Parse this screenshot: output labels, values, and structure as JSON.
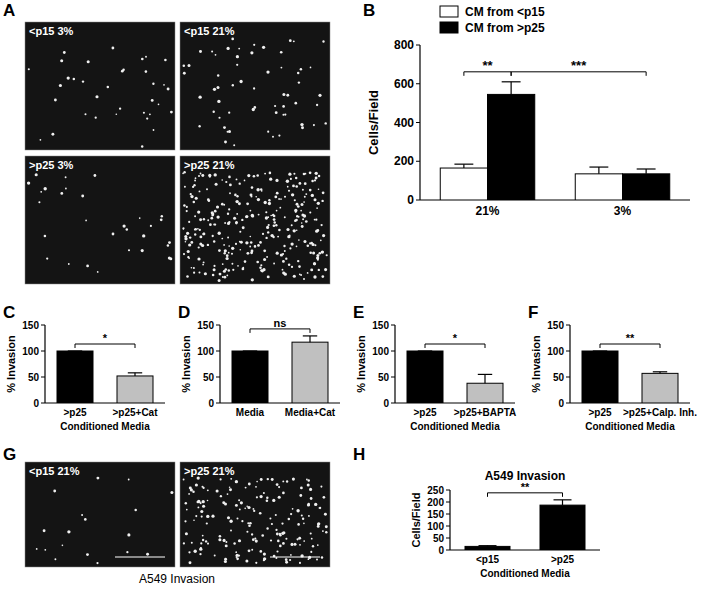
{
  "chart_data": [
    {
      "type": "bar",
      "categories": [
        "21%",
        "3%"
      ],
      "ylabel": "Cells/Field",
      "ylim": [
        0,
        800
      ],
      "yticks": [
        0,
        200,
        400,
        600,
        800
      ],
      "legend": "top",
      "series": [
        {
          "name": "CM from <p15",
          "color": "#ffffff",
          "values": [
            165,
            135
          ],
          "errors": [
            20,
            35
          ]
        },
        {
          "name": "CM from >p25",
          "color": "#000000",
          "values": [
            545,
            135
          ],
          "errors": [
            65,
            25
          ]
        }
      ],
      "annotations": [
        "**",
        "***"
      ]
    },
    {
      "type": "bar",
      "categories": [
        ">p25",
        ">p25+Cat"
      ],
      "values": [
        100,
        52
      ],
      "errors": [
        0,
        6
      ],
      "colors": [
        "#000000",
        "#c0c0c0"
      ],
      "ylabel": "% Invasion",
      "xlabel": "Conditioned Media",
      "ylim": [
        0,
        150
      ],
      "yticks": [
        0,
        50,
        100,
        150
      ],
      "annotations": [
        "*"
      ]
    },
    {
      "type": "bar",
      "categories": [
        "Media",
        "Media+Cat"
      ],
      "values": [
        100,
        117
      ],
      "errors": [
        0,
        12
      ],
      "colors": [
        "#000000",
        "#c0c0c0"
      ],
      "ylabel": "% Invasion",
      "ylim": [
        0,
        150
      ],
      "yticks": [
        0,
        50,
        100,
        150
      ],
      "annotations": [
        "ns"
      ]
    },
    {
      "type": "bar",
      "categories": [
        ">p25",
        ">p25+BAPTA"
      ],
      "values": [
        100,
        38
      ],
      "errors": [
        0,
        17
      ],
      "colors": [
        "#000000",
        "#c0c0c0"
      ],
      "ylabel": "% Invasion",
      "xlabel": "Conditioned Media",
      "ylim": [
        0,
        150
      ],
      "yticks": [
        0,
        50,
        100,
        150
      ],
      "annotations": [
        "*"
      ]
    },
    {
      "type": "bar",
      "categories": [
        ">p25",
        ">p25+Calp. Inh."
      ],
      "values": [
        100,
        57
      ],
      "errors": [
        0,
        3
      ],
      "colors": [
        "#000000",
        "#c0c0c0"
      ],
      "ylabel": "% Invasion",
      "xlabel": "Conditioned Media",
      "ylim": [
        0,
        150
      ],
      "yticks": [
        0,
        50,
        100,
        150
      ],
      "annotations": [
        "**"
      ]
    },
    {
      "type": "bar",
      "title": "A549 Invasion",
      "categories": [
        "<p15",
        ">p25"
      ],
      "values": [
        15,
        187
      ],
      "errors": [
        3,
        22
      ],
      "colors": [
        "#000000",
        "#000000"
      ],
      "ylabel": "Cells/Field",
      "xlabel": "Conditioned Media",
      "ylim": [
        0,
        250
      ],
      "yticks": [
        0,
        50,
        100,
        150,
        200,
        250
      ],
      "annotations": [
        "**"
      ]
    }
  ],
  "figure": {
    "panel_labels": [
      "A",
      "B",
      "C",
      "D",
      "E",
      "F",
      "G",
      "H"
    ],
    "micrographs": [
      {
        "tiles": [
          "<p15 3%",
          "<p15 21%",
          ">p25 3%",
          ">p25 21%"
        ]
      },
      {
        "tiles": [
          "<p15 21%",
          ">p25 21%"
        ],
        "caption": "A549 Invasion"
      }
    ]
  }
}
